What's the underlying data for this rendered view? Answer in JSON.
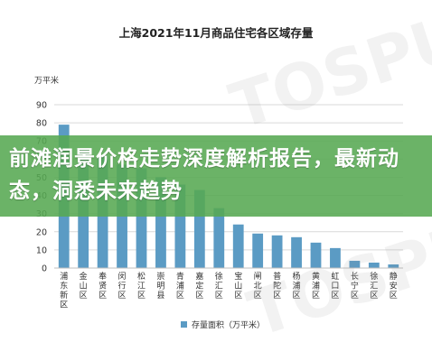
{
  "title": "上海2021年11月商品住宅各区域存量",
  "banner_text": "前滩润景价格走势深度解析报告，最新动态，洞悉未来趋势",
  "watermark": "TOSPUR",
  "colors": {
    "bar": "#5b9bc4",
    "banner": "#56a852",
    "grid": "#d9d9d9"
  },
  "chart_data": {
    "type": "bar",
    "title": "上海2021年11月商品住宅各区域存量",
    "ylabel": "万平米",
    "ylim": [
      0,
      90
    ],
    "yticks": [
      "0",
      "10",
      "20",
      "30",
      "40",
      "50",
      "60",
      "70",
      "80",
      "90"
    ],
    "categories": [
      "浦东新区",
      "金山区",
      "奉贤区",
      "闵行区",
      "松江区",
      "崇明县",
      "青浦区",
      "嘉定区",
      "徐汇区",
      "宝山区",
      "闸北区",
      "普陀区",
      "杨浦区",
      "黄浦区",
      "虹口区",
      "长宁区",
      "徐汇区",
      "静安区"
    ],
    "series": [
      {
        "name": "存量面积（万平米）",
        "values": [
          79,
          66,
          62,
          57,
          55,
          50,
          46,
          43,
          33,
          24,
          19,
          18,
          17,
          14,
          11,
          4,
          3,
          2
        ]
      }
    ],
    "legend": "bottom-center",
    "grid": true
  }
}
